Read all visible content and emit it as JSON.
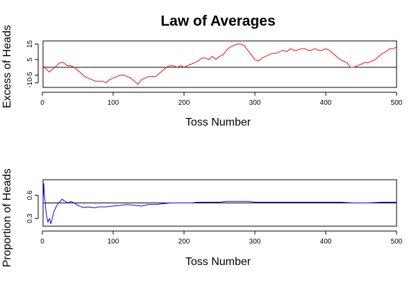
{
  "chart_data": {
    "type": "line",
    "title": "Law of Averages",
    "line_colors": {
      "heads": "#ff0000",
      "proportion": "#0000ff",
      "reference": "#000000"
    },
    "panels": [
      {
        "id": "excess",
        "ylabel": "Excess of Heads",
        "xlabel": "Toss Number",
        "xlim": [
          1,
          500
        ],
        "ylim": [
          -13,
          17
        ],
        "xticks": [
          0,
          100,
          200,
          300,
          400,
          500
        ],
        "xtick_labels": [
          "0",
          "100",
          "200",
          "300",
          "400",
          "500"
        ],
        "yticks": [
          -10,
          -5,
          5,
          15
        ],
        "ytick_labels": [
          "-10",
          "-5",
          "5",
          "15"
        ],
        "reference_line": 0,
        "series": [
          {
            "color": "#ff0000",
            "x": [
              1,
              5,
              10,
              15,
              20,
              25,
              30,
              35,
              40,
              45,
              50,
              55,
              60,
              65,
              70,
              75,
              80,
              85,
              90,
              95,
              100,
              105,
              110,
              115,
              120,
              125,
              130,
              135,
              140,
              145,
              150,
              155,
              160,
              165,
              170,
              175,
              180,
              185,
              190,
              195,
              200,
              205,
              210,
              215,
              220,
              225,
              230,
              235,
              240,
              245,
              250,
              255,
              260,
              265,
              270,
              275,
              280,
              285,
              290,
              295,
              300,
              305,
              310,
              315,
              320,
              325,
              330,
              335,
              340,
              345,
              350,
              355,
              360,
              365,
              370,
              375,
              380,
              385,
              390,
              395,
              400,
              405,
              410,
              415,
              420,
              425,
              430,
              435,
              440,
              445,
              450,
              455,
              460,
              465,
              470,
              475,
              480,
              485,
              490,
              495,
              500
            ],
            "y": [
              1,
              -1,
              -3,
              -1,
              1,
              3,
              3,
              1,
              1,
              0,
              -2,
              -4,
              -6,
              -7,
              -8,
              -9,
              -9,
              -9,
              -10,
              -8,
              -7,
              -6,
              -5,
              -5,
              -6,
              -7,
              -9,
              -11,
              -8,
              -7,
              -6,
              -6,
              -6,
              -4,
              -2,
              0,
              1,
              1,
              0,
              1,
              0,
              1,
              2,
              3,
              4,
              6,
              6,
              5,
              7,
              5,
              7,
              8,
              11,
              13,
              14,
              15,
              15,
              14,
              11,
              8,
              5,
              4,
              6,
              7,
              8,
              9,
              9,
              10,
              11,
              10,
              12,
              11,
              11,
              12,
              12,
              11,
              11,
              12,
              11,
              11,
              12,
              11,
              9,
              7,
              5,
              4,
              3,
              0,
              0,
              1,
              2,
              3,
              3,
              4,
              5,
              7,
              9,
              10,
              12,
              12,
              13
            ]
          }
        ]
      },
      {
        "id": "proportion",
        "ylabel": "Proportion of Heads",
        "xlabel": "Toss Number",
        "xlim": [
          1,
          500
        ],
        "ylim": [
          0.2,
          0.8
        ],
        "xticks": [
          0,
          100,
          200,
          300,
          400,
          500
        ],
        "xtick_labels": [
          "0",
          "100",
          "200",
          "300",
          "400",
          "500"
        ],
        "yticks": [
          0.3,
          0.6
        ],
        "ytick_labels": [
          "0.3",
          "0.6"
        ],
        "reference_line": 0.5,
        "series": [
          {
            "color": "#0000ff",
            "x": [
              1,
              2,
              3,
              4,
              5,
              6,
              7,
              8,
              9,
              10,
              11,
              12,
              14,
              16,
              18,
              20,
              22,
              25,
              28,
              30,
              33,
              36,
              40,
              45,
              50,
              55,
              60,
              65,
              70,
              75,
              80,
              90,
              100,
              110,
              120,
              130,
              140,
              150,
              160,
              170,
              180,
              190,
              200,
              210,
              220,
              230,
              240,
              250,
              260,
              270,
              280,
              290,
              300,
              310,
              320,
              340,
              360,
              380,
              400,
              420,
              440,
              460,
              480,
              500
            ],
            "y": [
              0.5,
              0.75,
              0.6,
              0.5,
              0.4,
              0.33,
              0.29,
              0.25,
              0.28,
              0.3,
              0.27,
              0.23,
              0.3,
              0.38,
              0.42,
              0.46,
              0.49,
              0.52,
              0.55,
              0.53,
              0.52,
              0.5,
              0.52,
              0.5,
              0.47,
              0.45,
              0.44,
              0.45,
              0.44,
              0.44,
              0.45,
              0.45,
              0.46,
              0.47,
              0.48,
              0.47,
              0.46,
              0.48,
              0.48,
              0.49,
              0.5,
              0.5,
              0.5,
              0.5,
              0.51,
              0.51,
              0.51,
              0.51,
              0.52,
              0.52,
              0.52,
              0.52,
              0.51,
              0.51,
              0.51,
              0.51,
              0.51,
              0.51,
              0.51,
              0.51,
              0.5,
              0.5,
              0.51,
              0.51
            ]
          }
        ]
      }
    ]
  }
}
